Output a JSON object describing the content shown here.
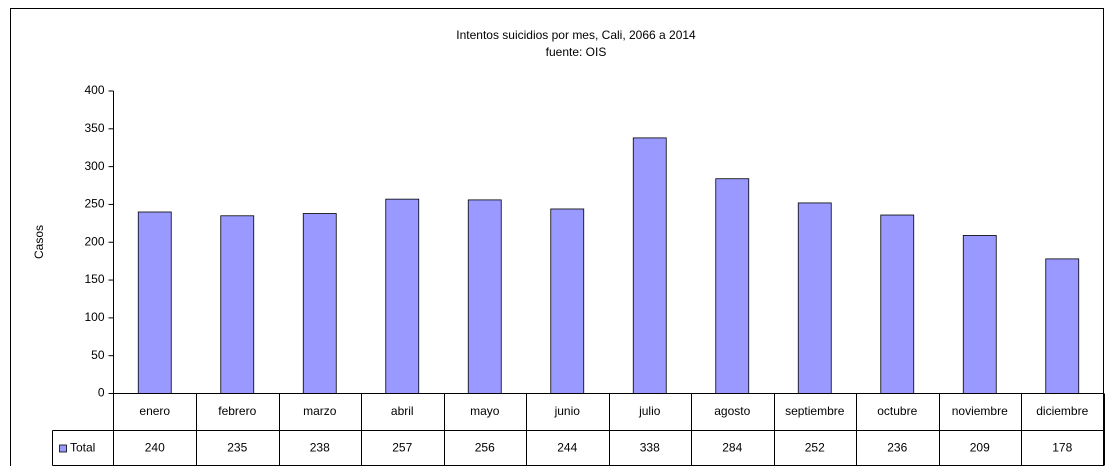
{
  "chart_data": {
    "type": "bar",
    "title": "Intentos suicidios por  mes, Cali, 2066 a 2014",
    "subtitle": "fuente: OIS",
    "y_label": "Casos",
    "categories": [
      "enero",
      "febrero",
      "marzo",
      "abril",
      "mayo",
      "junio",
      "julio",
      "agosto",
      "septiembre",
      "octubre",
      "noviembre",
      "diciembre"
    ],
    "series": [
      {
        "name": "Total",
        "color": "#9999ff",
        "values": [
          240,
          235,
          238,
          257,
          256,
          244,
          338,
          284,
          252,
          236,
          209,
          178
        ]
      }
    ],
    "ylim": [
      0,
      400
    ],
    "yticks": [
      0,
      50,
      100,
      150,
      200,
      250,
      300,
      350,
      400
    ],
    "grid": false
  }
}
